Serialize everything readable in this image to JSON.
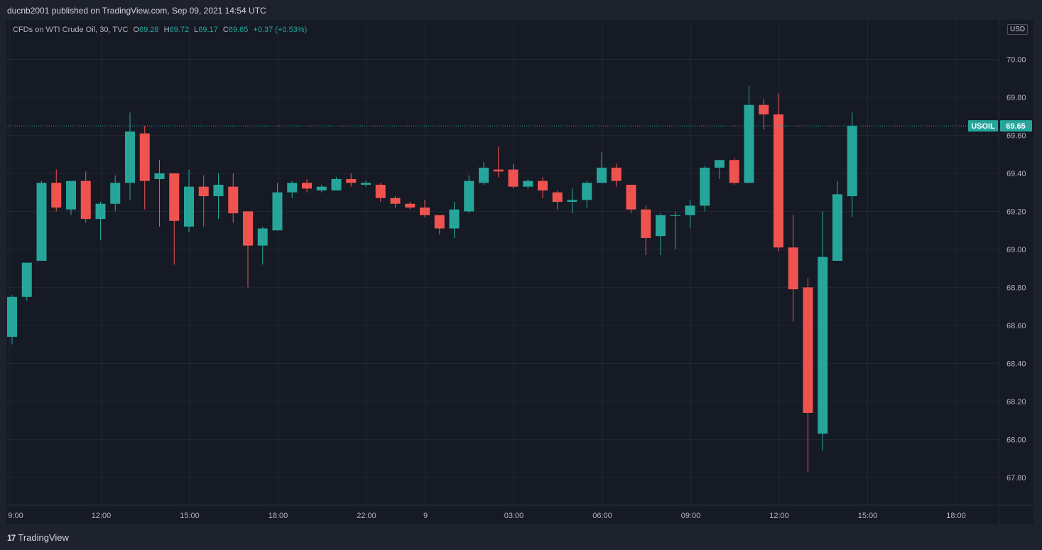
{
  "publisher_text": "ducnb2001 published on TradingView.com, Sep 09, 2021 14:54 UTC",
  "brand": {
    "logo": "17",
    "name": "TradingView"
  },
  "legend": {
    "symbol": "CFDs on WTI Crude Oil, 30, TVC",
    "o_label": "O",
    "o_value": "69.28",
    "h_label": "H",
    "h_value": "69.72",
    "l_label": "L",
    "l_value": "69.17",
    "c_label": "C",
    "c_value": "69.65",
    "change": "+0.37 (+0.53%)"
  },
  "currency": "USD",
  "last_price": {
    "symbol": "USOIL",
    "value": 69.65,
    "label": "69.65"
  },
  "colors": {
    "up": "#26a69a",
    "down": "#ef5350",
    "grid": "#232733",
    "text": "#b2b5be",
    "background": "#161a25"
  },
  "chart_data": {
    "type": "candlestick",
    "title": "CFDs on WTI Crude Oil, 30, TVC",
    "ylim": [
      67.65,
      70.2
    ],
    "y_ticks": [
      67.8,
      68.0,
      68.2,
      68.4,
      68.6,
      68.8,
      69.0,
      69.2,
      69.4,
      69.6,
      69.8,
      70.0
    ],
    "x_ticks": [
      {
        "label": "9:00",
        "bar": -0.2
      },
      {
        "label": "12:00",
        "bar": 6
      },
      {
        "label": "15:00",
        "bar": 12
      },
      {
        "label": "18:00",
        "bar": 18
      },
      {
        "label": "22:00",
        "bar": 24
      },
      {
        "label": "9",
        "bar": 28
      },
      {
        "label": "03:00",
        "bar": 34
      },
      {
        "label": "06:00",
        "bar": 40
      },
      {
        "label": "09:00",
        "bar": 46
      },
      {
        "label": "12:00",
        "bar": 52
      },
      {
        "label": "15:00",
        "bar": 58
      },
      {
        "label": "18:00",
        "bar": 64
      }
    ],
    "bar_count_span": 67.6,
    "candles": [
      {
        "o": 68.54,
        "h": 68.76,
        "l": 68.5,
        "c": 68.75
      },
      {
        "o": 68.75,
        "h": 68.93,
        "l": 68.73,
        "c": 68.93
      },
      {
        "o": 68.94,
        "h": 69.36,
        "l": 68.94,
        "c": 69.35
      },
      {
        "o": 69.35,
        "h": 69.42,
        "l": 69.2,
        "c": 69.22
      },
      {
        "o": 69.21,
        "h": 69.36,
        "l": 69.18,
        "c": 69.36
      },
      {
        "o": 69.36,
        "h": 69.41,
        "l": 69.14,
        "c": 69.16
      },
      {
        "o": 69.16,
        "h": 69.25,
        "l": 69.05,
        "c": 69.24
      },
      {
        "o": 69.24,
        "h": 69.39,
        "l": 69.2,
        "c": 69.35
      },
      {
        "o": 69.35,
        "h": 69.72,
        "l": 69.26,
        "c": 69.62
      },
      {
        "o": 69.61,
        "h": 69.65,
        "l": 69.21,
        "c": 69.36
      },
      {
        "o": 69.37,
        "h": 69.47,
        "l": 69.12,
        "c": 69.4
      },
      {
        "o": 69.4,
        "h": 69.4,
        "l": 68.92,
        "c": 69.15
      },
      {
        "o": 69.12,
        "h": 69.42,
        "l": 69.09,
        "c": 69.33
      },
      {
        "o": 69.33,
        "h": 69.39,
        "l": 69.12,
        "c": 69.28
      },
      {
        "o": 69.28,
        "h": 69.4,
        "l": 69.16,
        "c": 69.34
      },
      {
        "o": 69.33,
        "h": 69.4,
        "l": 69.14,
        "c": 69.19
      },
      {
        "o": 69.2,
        "h": 69.2,
        "l": 68.8,
        "c": 69.02
      },
      {
        "o": 69.02,
        "h": 69.12,
        "l": 68.92,
        "c": 69.11
      },
      {
        "o": 69.1,
        "h": 69.35,
        "l": 69.1,
        "c": 69.3
      },
      {
        "o": 69.3,
        "h": 69.36,
        "l": 69.27,
        "c": 69.35
      },
      {
        "o": 69.35,
        "h": 69.37,
        "l": 69.3,
        "c": 69.32
      },
      {
        "o": 69.31,
        "h": 69.34,
        "l": 69.3,
        "c": 69.33
      },
      {
        "o": 69.31,
        "h": 69.38,
        "l": 69.31,
        "c": 69.37
      },
      {
        "o": 69.37,
        "h": 69.4,
        "l": 69.33,
        "c": 69.35
      },
      {
        "o": 69.34,
        "h": 69.36,
        "l": 69.33,
        "c": 69.35
      },
      {
        "o": 69.34,
        "h": 69.35,
        "l": 69.25,
        "c": 69.27
      },
      {
        "o": 69.27,
        "h": 69.28,
        "l": 69.22,
        "c": 69.24
      },
      {
        "o": 69.24,
        "h": 69.25,
        "l": 69.21,
        "c": 69.22
      },
      {
        "o": 69.22,
        "h": 69.26,
        "l": 69.17,
        "c": 69.18
      },
      {
        "o": 69.18,
        "h": 69.18,
        "l": 69.08,
        "c": 69.11
      },
      {
        "o": 69.11,
        "h": 69.25,
        "l": 69.06,
        "c": 69.21
      },
      {
        "o": 69.2,
        "h": 69.39,
        "l": 69.19,
        "c": 69.36
      },
      {
        "o": 69.35,
        "h": 69.46,
        "l": 69.34,
        "c": 69.43
      },
      {
        "o": 69.42,
        "h": 69.54,
        "l": 69.38,
        "c": 69.41
      },
      {
        "o": 69.42,
        "h": 69.45,
        "l": 69.32,
        "c": 69.33
      },
      {
        "o": 69.33,
        "h": 69.37,
        "l": 69.32,
        "c": 69.36
      },
      {
        "o": 69.36,
        "h": 69.38,
        "l": 69.27,
        "c": 69.31
      },
      {
        "o": 69.3,
        "h": 69.31,
        "l": 69.21,
        "c": 69.25
      },
      {
        "o": 69.25,
        "h": 69.32,
        "l": 69.19,
        "c": 69.26
      },
      {
        "o": 69.26,
        "h": 69.36,
        "l": 69.22,
        "c": 69.35
      },
      {
        "o": 69.35,
        "h": 69.51,
        "l": 69.35,
        "c": 69.43
      },
      {
        "o": 69.43,
        "h": 69.45,
        "l": 69.33,
        "c": 69.36
      },
      {
        "o": 69.34,
        "h": 69.34,
        "l": 69.19,
        "c": 69.21
      },
      {
        "o": 69.21,
        "h": 69.23,
        "l": 68.97,
        "c": 69.06
      },
      {
        "o": 69.07,
        "h": 69.19,
        "l": 68.97,
        "c": 69.18
      },
      {
        "o": 69.18,
        "h": 69.2,
        "l": 69.0,
        "c": 69.18
      },
      {
        "o": 69.18,
        "h": 69.26,
        "l": 69.11,
        "c": 69.23
      },
      {
        "o": 69.23,
        "h": 69.44,
        "l": 69.2,
        "c": 69.43
      },
      {
        "o": 69.43,
        "h": 69.47,
        "l": 69.37,
        "c": 69.47
      },
      {
        "o": 69.47,
        "h": 69.48,
        "l": 69.34,
        "c": 69.35
      },
      {
        "o": 69.35,
        "h": 69.86,
        "l": 69.35,
        "c": 69.76
      },
      {
        "o": 69.76,
        "h": 69.79,
        "l": 69.63,
        "c": 69.71
      },
      {
        "o": 69.71,
        "h": 69.82,
        "l": 68.99,
        "c": 69.01
      },
      {
        "o": 69.01,
        "h": 69.18,
        "l": 68.62,
        "c": 68.79
      },
      {
        "o": 68.8,
        "h": 68.85,
        "l": 67.83,
        "c": 68.14
      },
      {
        "o": 68.03,
        "h": 69.2,
        "l": 67.94,
        "c": 68.96
      },
      {
        "o": 68.94,
        "h": 69.36,
        "l": 68.94,
        "c": 69.29
      },
      {
        "o": 69.28,
        "h": 69.72,
        "l": 69.17,
        "c": 69.65
      }
    ]
  }
}
